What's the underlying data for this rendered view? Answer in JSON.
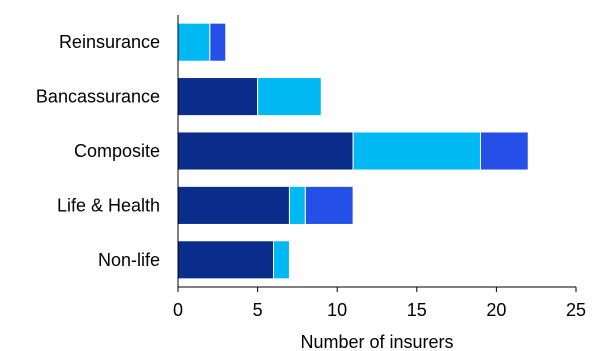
{
  "chart_data": {
    "type": "bar",
    "orientation": "horizontal",
    "stacked": true,
    "categories": [
      "Reinsurance",
      "Bancassurance",
      "Composite",
      "Life & Health",
      "Non-life"
    ],
    "series": [
      {
        "color": "#0a2d8c",
        "values": [
          0,
          5,
          11,
          7,
          6
        ]
      },
      {
        "color": "#00b9f2",
        "values": [
          2,
          4,
          8,
          1,
          1
        ]
      },
      {
        "color": "#2550e8",
        "values": [
          1,
          0,
          3,
          3,
          0
        ]
      }
    ],
    "xlabel": "Number of insurers",
    "ylabel": "",
    "xlim": [
      0,
      25
    ],
    "xticks": [
      "0",
      "5",
      "10",
      "15",
      "20",
      "25"
    ],
    "grid": false,
    "legend": "none"
  }
}
